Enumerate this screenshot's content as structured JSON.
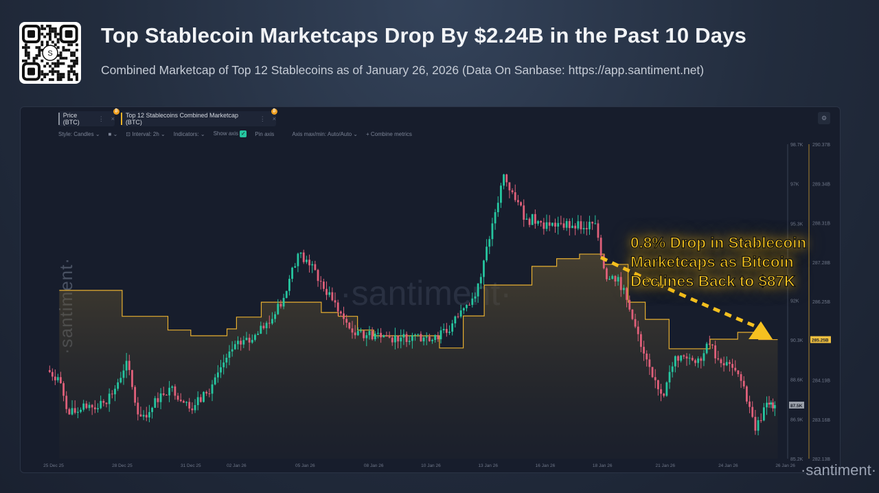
{
  "header": {
    "title": "Top Stablecoin Marketcaps Drop By $2.24B in the Past 10 Days",
    "subtitle": "Combined Marketcap of Top 12 Stablecoins as of January 26, 2026 (Data On Sanbase: https://app.santiment.net)",
    "qr_logo": "S"
  },
  "tabs": [
    {
      "label": "Price (BTC)",
      "color": "#8a909c"
    },
    {
      "label": "Top 12 Stablecoins Combined Marketcap (BTC)",
      "color": "#f0b429"
    }
  ],
  "toolbar": {
    "style": "Style: Candles",
    "interval": "Interval: 2h",
    "indicators": "Indicators:",
    "show_axis": "Show axis",
    "pin_axis": "Pin axis",
    "axis_maxmin": "Axis max/min: Auto/Auto",
    "combine": "+ Combine metrics"
  },
  "watermark": "·santiment·",
  "annotation": [
    "0.8% Drop in Stablecoin",
    "Marketcaps as Bitcoin",
    "Declines Back to $87K"
  ],
  "colors": {
    "up": "#26c6a0",
    "down": "#e0607a",
    "marketcap": "#e8b030"
  },
  "chart_data": {
    "type": "candlestick+step-area",
    "x_ticks": [
      {
        "label": "25 Dec 25",
        "date": "2025-12-25T00:00"
      },
      {
        "label": "28 Dec 25",
        "date": "2025-12-28T00:00"
      },
      {
        "label": "31 Dec 25",
        "date": "2025-12-31T00:00"
      },
      {
        "label": "02 Jan 26",
        "date": "2026-01-02T00:00"
      },
      {
        "label": "05 Jan 26",
        "date": "2026-01-05T00:00"
      },
      {
        "label": "08 Jan 26",
        "date": "2026-01-08T00:00"
      },
      {
        "label": "10 Jan 26",
        "date": "2026-01-10T12:00"
      },
      {
        "label": "13 Jan 26",
        "date": "2026-01-13T00:00"
      },
      {
        "label": "16 Jan 26",
        "date": "2026-01-15T12:00"
      },
      {
        "label": "18 Jan 26",
        "date": "2026-01-18T00:00"
      },
      {
        "label": "21 Jan 26",
        "date": "2026-01-20T18:00"
      },
      {
        "label": "24 Jan 26",
        "date": "2026-01-23T12:00"
      },
      {
        "label": "26 Jan 26",
        "date": "2026-01-26T00:00"
      }
    ],
    "price_axis": {
      "ticks": [
        "98.7K",
        "97K",
        "95.3K",
        "92K",
        "90.3K",
        "88.6K",
        "86.9K",
        "85.2K"
      ],
      "tick_values": [
        98.7,
        97.0,
        95.3,
        92.0,
        90.3,
        88.6,
        86.9,
        85.2
      ],
      "range": [
        85.2,
        98.7
      ],
      "current": "87.5K"
    },
    "marketcap_axis": {
      "ticks": [
        "290.37B",
        "289.34B",
        "288.31B",
        "287.28B",
        "286.25B",
        "284.19B",
        "283.16B",
        "282.13B"
      ],
      "tick_values": [
        290.37,
        289.34,
        288.31,
        287.28,
        286.25,
        284.19,
        283.16,
        282.13
      ],
      "range": [
        282.13,
        290.37
      ],
      "current": "285.25B"
    },
    "series": [
      {
        "name": "Price (BTC)",
        "unit": "K USD",
        "type": "candles",
        "closes": [
          [
            "2025-12-25T06:00",
            88.7
          ],
          [
            "2025-12-25T18:00",
            87.1
          ],
          [
            "2025-12-26T06:00",
            87.3
          ],
          [
            "2025-12-26T18:00",
            87.4
          ],
          [
            "2025-12-27T06:00",
            87.6
          ],
          [
            "2025-12-27T18:00",
            88.2
          ],
          [
            "2025-12-28T06:00",
            89.4
          ],
          [
            "2025-12-28T18:00",
            87.1
          ],
          [
            "2025-12-29T06:00",
            87.2
          ],
          [
            "2025-12-29T18:00",
            88.0
          ],
          [
            "2025-12-30T06:00",
            88.3
          ],
          [
            "2025-12-30T18:00",
            87.6
          ],
          [
            "2025-12-31T06:00",
            87.5
          ],
          [
            "2025-12-31T18:00",
            88.0
          ],
          [
            "2026-01-01T06:00",
            88.9
          ],
          [
            "2026-01-01T18:00",
            89.8
          ],
          [
            "2026-01-02T06:00",
            90.1
          ],
          [
            "2026-01-02T18:00",
            90.3
          ],
          [
            "2026-01-03T06:00",
            90.8
          ],
          [
            "2026-01-03T18:00",
            91.4
          ],
          [
            "2026-01-04T06:00",
            92.4
          ],
          [
            "2026-01-04T18:00",
            94.0
          ],
          [
            "2026-01-05T06:00",
            93.5
          ],
          [
            "2026-01-05T18:00",
            92.8
          ],
          [
            "2026-01-06T06:00",
            92.0
          ],
          [
            "2026-01-06T18:00",
            91.2
          ],
          [
            "2026-01-07T06:00",
            90.5
          ],
          [
            "2026-01-07T18:00",
            90.5
          ],
          [
            "2026-01-08T06:00",
            90.6
          ],
          [
            "2026-01-08T18:00",
            90.4
          ],
          [
            "2026-01-09T06:00",
            90.4
          ],
          [
            "2026-01-09T18:00",
            90.5
          ],
          [
            "2026-01-10T06:00",
            90.4
          ],
          [
            "2026-01-10T18:00",
            90.5
          ],
          [
            "2026-01-11T06:00",
            90.6
          ],
          [
            "2026-01-11T18:00",
            91.3
          ],
          [
            "2026-01-12T06:00",
            91.8
          ],
          [
            "2026-01-12T18:00",
            93.0
          ],
          [
            "2026-01-13T06:00",
            95.3
          ],
          [
            "2026-01-13T18:00",
            97.4
          ],
          [
            "2026-01-14T06:00",
            96.3
          ],
          [
            "2026-01-14T18:00",
            95.5
          ],
          [
            "2026-01-15T06:00",
            95.4
          ],
          [
            "2026-01-15T18:00",
            95.2
          ],
          [
            "2026-01-16T06:00",
            95.3
          ],
          [
            "2026-01-16T18:00",
            95.2
          ],
          [
            "2026-01-17T06:00",
            95.1
          ],
          [
            "2026-01-17T18:00",
            95.3
          ],
          [
            "2026-01-18T06:00",
            92.9
          ],
          [
            "2026-01-18T18:00",
            93.0
          ],
          [
            "2026-01-19T06:00",
            91.6
          ],
          [
            "2026-01-19T18:00",
            90.0
          ],
          [
            "2026-01-20T06:00",
            88.7
          ],
          [
            "2026-01-20T18:00",
            87.9
          ],
          [
            "2026-01-21T06:00",
            89.6
          ],
          [
            "2026-01-21T18:00",
            89.5
          ],
          [
            "2026-01-22T06:00",
            89.5
          ],
          [
            "2026-01-22T18:00",
            90.1
          ],
          [
            "2026-01-23T06:00",
            89.3
          ],
          [
            "2026-01-23T18:00",
            89.1
          ],
          [
            "2026-01-24T06:00",
            88.3
          ],
          [
            "2026-01-24T18:00",
            86.4
          ],
          [
            "2026-01-25T06:00",
            87.6
          ],
          [
            "2026-01-25T14:00",
            87.5
          ]
        ]
      },
      {
        "name": "Top 12 Stablecoins Combined Marketcap (BTC)",
        "unit": "B USD",
        "type": "step-area",
        "points": [
          [
            "2025-12-25T06:00",
            286.54
          ],
          [
            "2025-12-28T00:00",
            285.86
          ],
          [
            "2025-12-30T00:00",
            285.5
          ],
          [
            "2025-12-31T00:00",
            285.35
          ],
          [
            "2026-01-01T14:00",
            285.53
          ],
          [
            "2026-01-02T00:00",
            285.84
          ],
          [
            "2026-01-03T02:00",
            286.23
          ],
          [
            "2026-01-05T17:00",
            285.96
          ],
          [
            "2026-01-06T11:00",
            285.86
          ],
          [
            "2026-01-07T07:00",
            285.5
          ],
          [
            "2026-01-08T00:00",
            285.35
          ],
          [
            "2026-01-10T21:00",
            285.03
          ],
          [
            "2026-01-11T22:00",
            285.87
          ],
          [
            "2026-01-12T20:00",
            286.68
          ],
          [
            "2026-01-14T22:00",
            287.17
          ],
          [
            "2026-01-16T00:00",
            287.37
          ],
          [
            "2026-01-17T00:00",
            287.49
          ],
          [
            "2026-01-18T02:00",
            287.22
          ],
          [
            "2026-01-19T03:00",
            286.23
          ],
          [
            "2026-01-19T21:00",
            285.78
          ],
          [
            "2026-01-20T22:00",
            285.01
          ],
          [
            "2026-01-22T17:00",
            285.26
          ],
          [
            "2026-01-23T22:00",
            285.44
          ],
          [
            "2026-01-24T20:00",
            285.25
          ],
          [
            "2026-01-25T16:00",
            285.25
          ]
        ]
      }
    ],
    "grid": false,
    "legend": "top-left tabs"
  }
}
